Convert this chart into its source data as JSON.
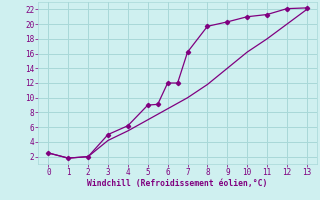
{
  "xlabel": "Windchill (Refroidissement éolien,°C)",
  "bg_color": "#cff0f0",
  "grid_color": "#a8d8d8",
  "line_color": "#800080",
  "xlim": [
    -0.5,
    13.5
  ],
  "ylim": [
    1.0,
    23.0
  ],
  "xticks": [
    0,
    1,
    2,
    3,
    4,
    5,
    6,
    7,
    8,
    9,
    10,
    11,
    12,
    13
  ],
  "yticks": [
    2,
    4,
    6,
    8,
    10,
    12,
    14,
    16,
    18,
    20,
    22
  ],
  "line1_x": [
    0,
    1,
    2,
    3,
    4,
    5,
    5.5,
    6,
    6.5,
    7,
    8,
    9,
    10,
    11,
    12,
    13
  ],
  "line1_y": [
    2.5,
    1.8,
    2.0,
    5.0,
    6.2,
    9.0,
    9.1,
    12.0,
    12.0,
    16.2,
    19.7,
    20.3,
    21.0,
    21.3,
    22.1,
    22.2
  ],
  "line2_x": [
    0,
    1,
    2,
    3,
    4,
    5,
    6,
    7,
    8,
    9,
    10,
    11,
    12,
    13
  ],
  "line2_y": [
    2.5,
    1.8,
    2.0,
    4.2,
    5.5,
    7.0,
    8.5,
    10.0,
    11.8,
    14.0,
    16.2,
    18.0,
    20.0,
    22.0
  ]
}
